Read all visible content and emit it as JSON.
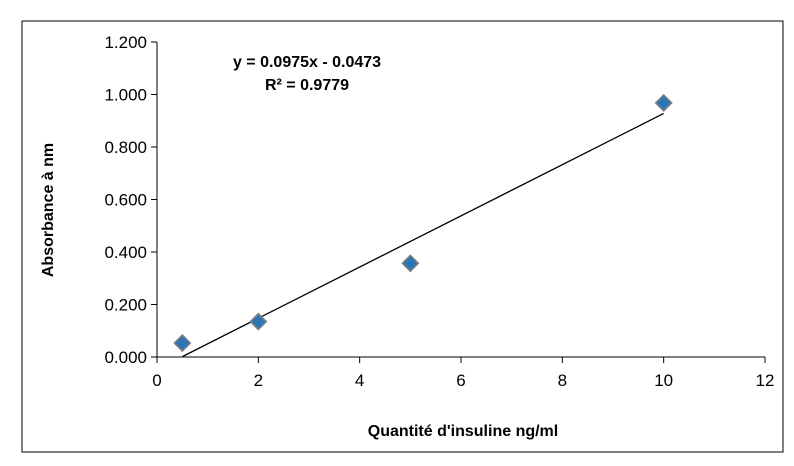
{
  "chart_data": {
    "type": "scatter",
    "xlabel": "Quantité d'insuline ng/ml",
    "ylabel": "Absorbance à  nm",
    "xlim": [
      0,
      12
    ],
    "ylim": [
      0,
      1.2
    ],
    "x_ticks": [
      "0",
      "2",
      "4",
      "6",
      "8",
      "10",
      "12"
    ],
    "y_ticks": [
      "0.000",
      "0.200",
      "0.400",
      "0.600",
      "0.800",
      "1.000",
      "1.200"
    ],
    "grid": false,
    "series": [
      {
        "x": [
          0.5,
          2,
          5,
          10
        ],
        "y": [
          0.053,
          0.135,
          0.357,
          0.968
        ],
        "marker": "diamond",
        "color": "#2E75B6"
      }
    ],
    "trendline": {
      "type": "linear",
      "slope": 0.0975,
      "intercept": -0.0473,
      "x_range": [
        0.5,
        10
      ],
      "equation_label": "y = 0.0975x - 0.0473",
      "r2_label": "R² = 0.9779",
      "color": "#000000"
    }
  }
}
